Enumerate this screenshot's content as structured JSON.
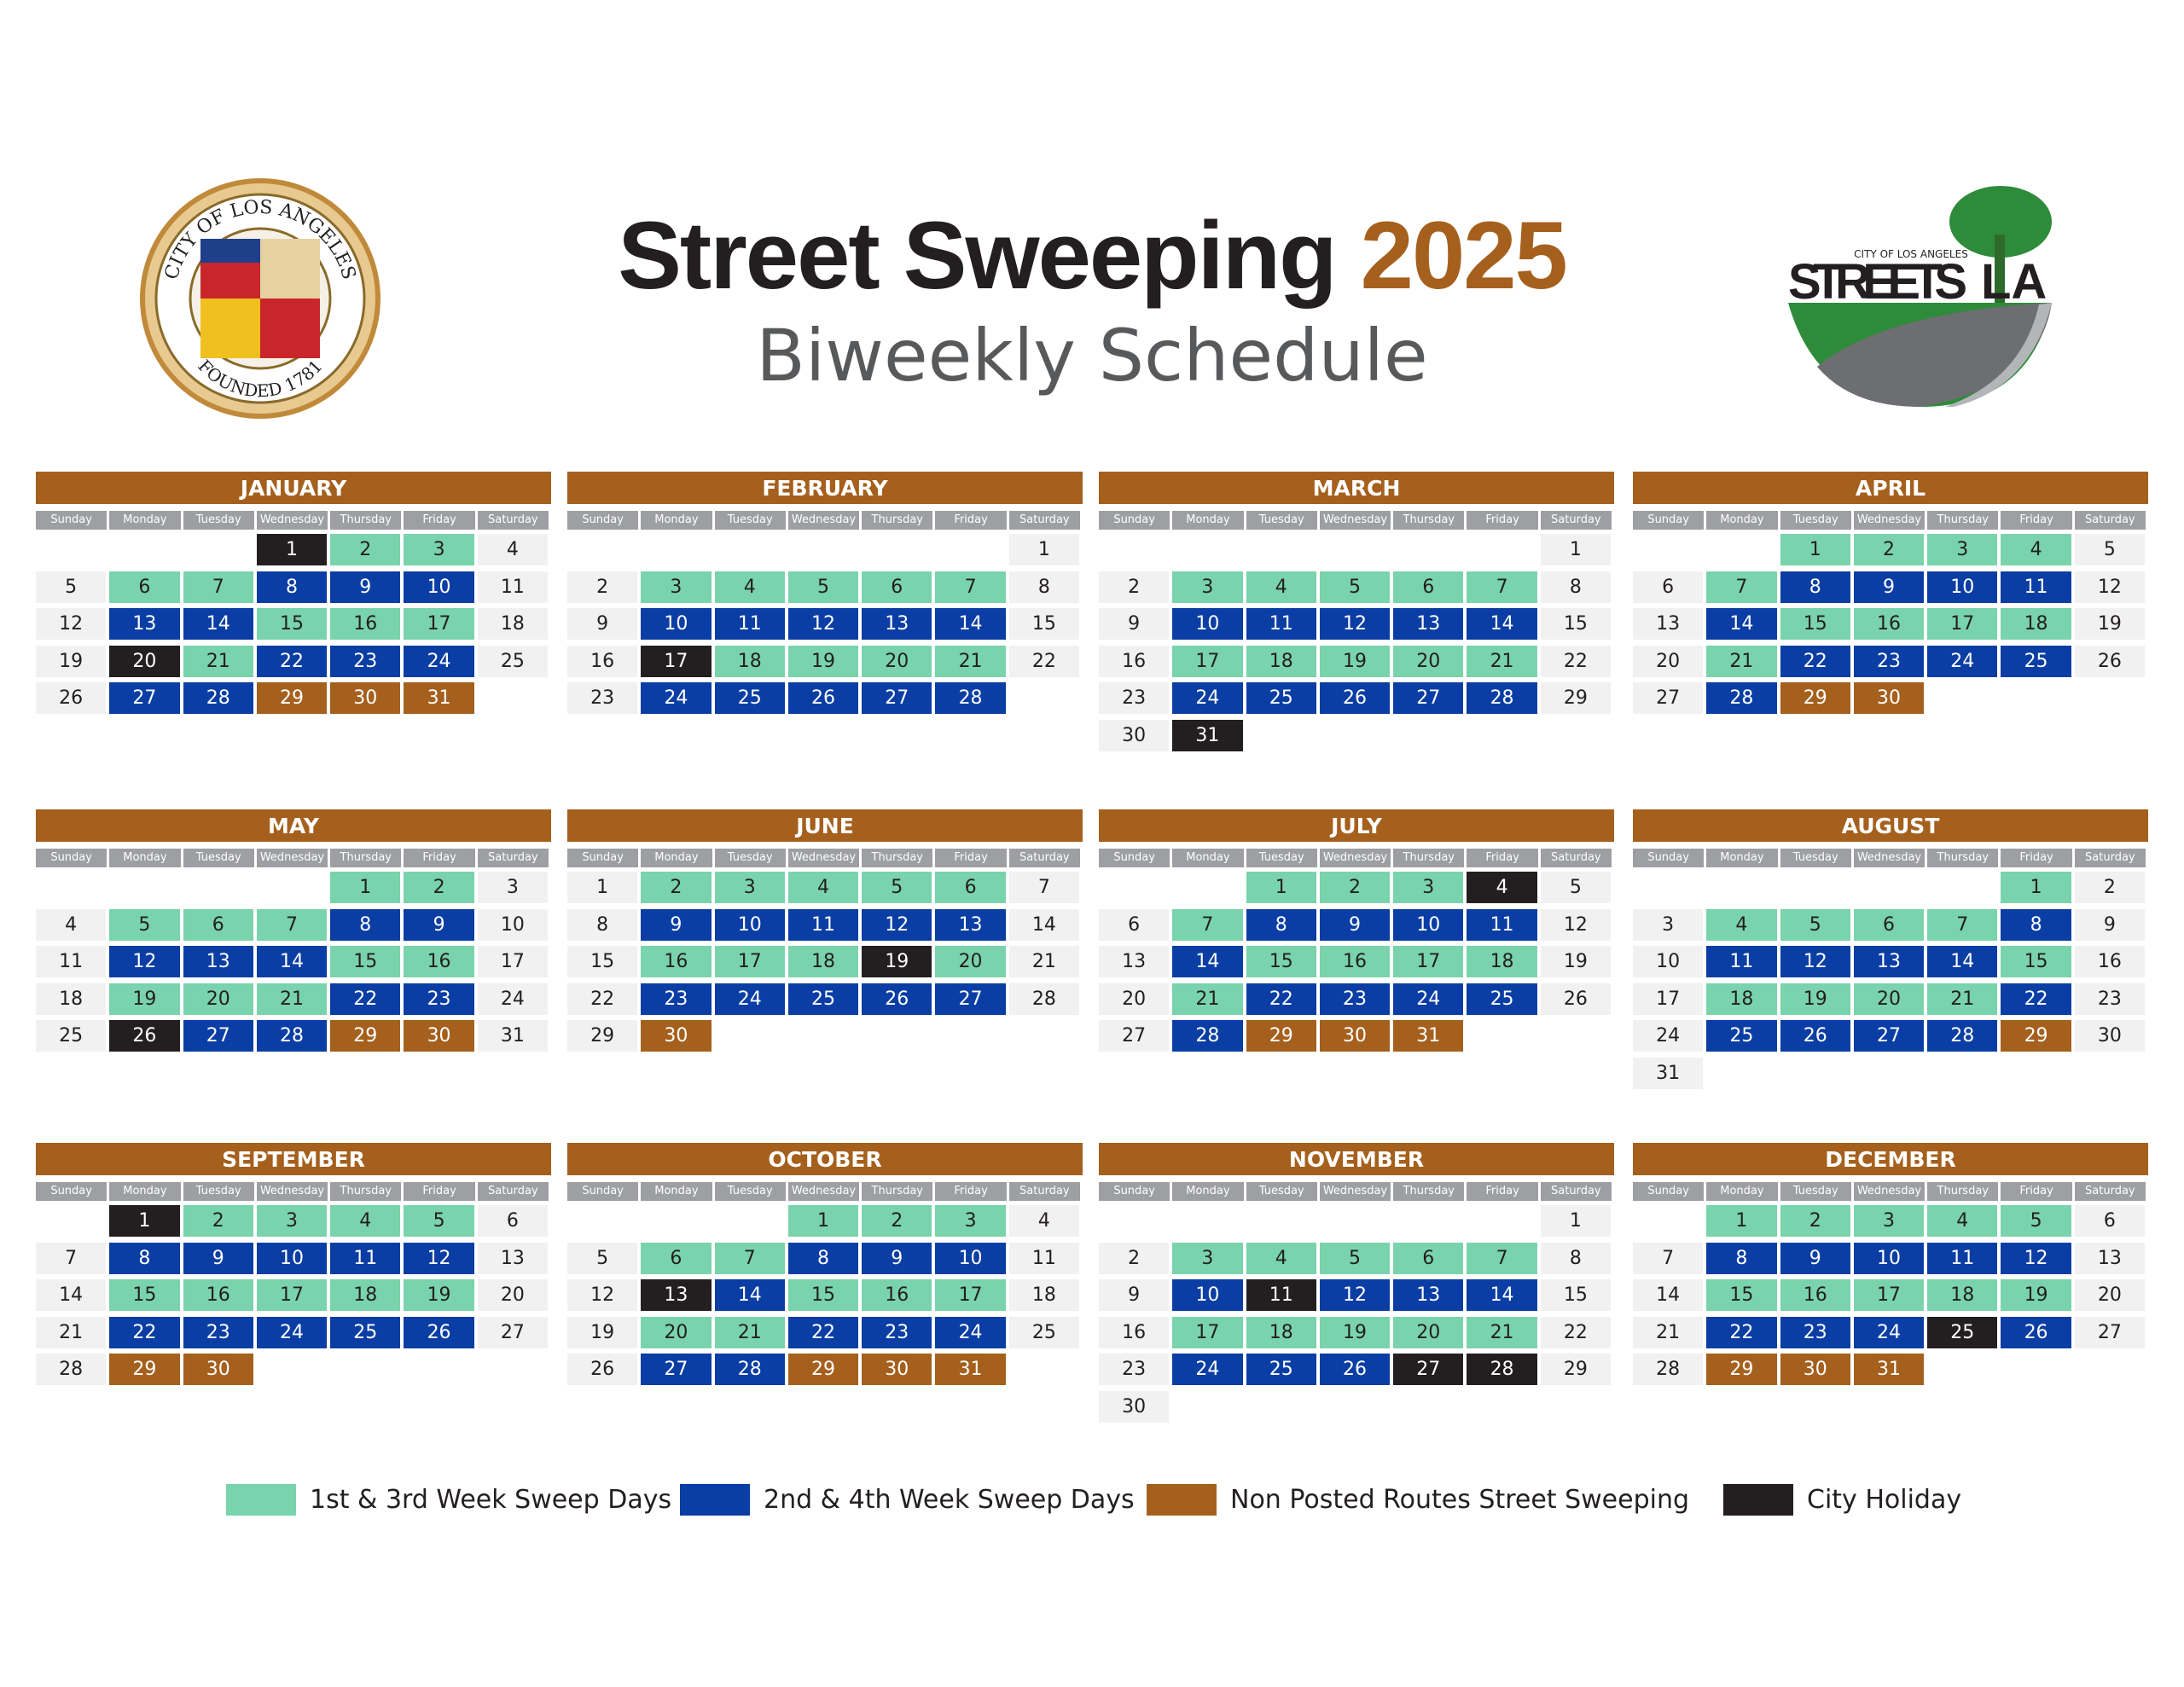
{
  "header": {
    "title": "Street Sweeping",
    "year": "2025",
    "subtitle": "Biweekly Schedule",
    "seal_top": "CITY OF LOS ANGELES",
    "seal_bottom": "FOUNDED 1781",
    "logo_small": "CITY OF LOS ANGELES",
    "logo_left": "STREETS",
    "logo_right": "LA"
  },
  "weekdays": [
    "Sunday",
    "Monday",
    "Tuesday",
    "Wednesday",
    "Thursday",
    "Friday",
    "Saturday"
  ],
  "legend": [
    {
      "label": "1st & 3rd Week Sweep Days",
      "color": "#79d3ac"
    },
    {
      "label": "2nd & 4th Week Sweep Days",
      "color": "#0b3ea4"
    },
    {
      "label": "Non Posted Routes Street Sweeping",
      "color": "#a5601d"
    },
    {
      "label": "City Holiday",
      "color": "#231f20"
    }
  ],
  "months": [
    {
      "name": "JANUARY",
      "weeks": [
        [
          null,
          null,
          null,
          1,
          2,
          3,
          4
        ],
        [
          5,
          6,
          7,
          8,
          9,
          10,
          11
        ],
        [
          12,
          13,
          14,
          15,
          16,
          17,
          18
        ],
        [
          19,
          20,
          21,
          22,
          23,
          24,
          25
        ],
        [
          26,
          27,
          28,
          29,
          30,
          31,
          null
        ]
      ],
      "kinds": [
        3,
        0,
        0,
        null,
        null,
        0,
        0,
        1,
        1,
        1,
        null,
        null,
        1,
        1,
        0,
        0,
        0,
        null,
        null,
        3,
        0,
        1,
        1,
        1,
        null,
        null,
        1,
        1,
        2,
        2,
        2
      ]
    },
    {
      "name": "FEBRUARY",
      "weeks": [
        [
          null,
          null,
          null,
          null,
          null,
          null,
          1
        ],
        [
          2,
          3,
          4,
          5,
          6,
          7,
          8
        ],
        [
          9,
          10,
          11,
          12,
          13,
          14,
          15
        ],
        [
          16,
          17,
          18,
          19,
          20,
          21,
          22
        ],
        [
          23,
          24,
          25,
          26,
          27,
          28,
          null
        ]
      ],
      "kinds": [
        null,
        null,
        0,
        0,
        0,
        0,
        0,
        null,
        null,
        1,
        1,
        1,
        1,
        1,
        null,
        null,
        3,
        0,
        0,
        0,
        0,
        null,
        null,
        1,
        1,
        1,
        1,
        1
      ]
    },
    {
      "name": "MARCH",
      "weeks": [
        [
          null,
          null,
          null,
          null,
          null,
          null,
          1
        ],
        [
          2,
          3,
          4,
          5,
          6,
          7,
          8
        ],
        [
          9,
          10,
          11,
          12,
          13,
          14,
          15
        ],
        [
          16,
          17,
          18,
          19,
          20,
          21,
          22
        ],
        [
          23,
          24,
          25,
          26,
          27,
          28,
          29
        ],
        [
          30,
          31,
          null,
          null,
          null,
          null,
          null
        ]
      ],
      "kinds": [
        null,
        null,
        0,
        0,
        0,
        0,
        0,
        null,
        null,
        1,
        1,
        1,
        1,
        1,
        null,
        null,
        0,
        0,
        0,
        0,
        0,
        null,
        null,
        1,
        1,
        1,
        1,
        1,
        null,
        null,
        3
      ]
    },
    {
      "name": "APRIL",
      "weeks": [
        [
          null,
          null,
          1,
          2,
          3,
          4,
          5
        ],
        [
          6,
          7,
          8,
          9,
          10,
          11,
          12
        ],
        [
          13,
          14,
          15,
          16,
          17,
          18,
          19
        ],
        [
          20,
          21,
          22,
          23,
          24,
          25,
          26
        ],
        [
          27,
          28,
          29,
          30,
          null,
          null,
          null
        ]
      ],
      "kinds": [
        0,
        0,
        0,
        0,
        null,
        null,
        0,
        1,
        1,
        1,
        1,
        null,
        null,
        1,
        0,
        0,
        0,
        0,
        null,
        null,
        0,
        1,
        1,
        1,
        1,
        null,
        null,
        1,
        2,
        2
      ]
    },
    {
      "name": "MAY",
      "weeks": [
        [
          null,
          null,
          null,
          null,
          1,
          2,
          3
        ],
        [
          4,
          5,
          6,
          7,
          8,
          9,
          10
        ],
        [
          11,
          12,
          13,
          14,
          15,
          16,
          17
        ],
        [
          18,
          19,
          20,
          21,
          22,
          23,
          24
        ],
        [
          25,
          26,
          27,
          28,
          29,
          30,
          31
        ]
      ],
      "kinds": [
        0,
        0,
        null,
        null,
        0,
        0,
        0,
        1,
        1,
        null,
        null,
        1,
        1,
        1,
        0,
        0,
        null,
        null,
        0,
        0,
        0,
        1,
        1,
        null,
        null,
        3,
        1,
        1,
        2,
        2,
        null
      ]
    },
    {
      "name": "JUNE",
      "weeks": [
        [
          1,
          2,
          3,
          4,
          5,
          6,
          7
        ],
        [
          8,
          9,
          10,
          11,
          12,
          13,
          14
        ],
        [
          15,
          16,
          17,
          18,
          19,
          20,
          21
        ],
        [
          22,
          23,
          24,
          25,
          26,
          27,
          28
        ],
        [
          29,
          30,
          null,
          null,
          null,
          null,
          null
        ]
      ],
      "kinds": [
        null,
        0,
        0,
        0,
        0,
        0,
        null,
        null,
        1,
        1,
        1,
        1,
        1,
        null,
        null,
        0,
        0,
        0,
        3,
        0,
        null,
        null,
        1,
        1,
        1,
        1,
        1,
        null,
        null,
        2
      ]
    },
    {
      "name": "JULY",
      "weeks": [
        [
          null,
          null,
          1,
          2,
          3,
          4,
          5
        ],
        [
          6,
          7,
          8,
          9,
          10,
          11,
          12
        ],
        [
          13,
          14,
          15,
          16,
          17,
          18,
          19
        ],
        [
          20,
          21,
          22,
          23,
          24,
          25,
          26
        ],
        [
          27,
          28,
          29,
          30,
          31,
          null,
          null
        ]
      ],
      "kinds": [
        0,
        0,
        0,
        3,
        null,
        null,
        0,
        1,
        1,
        1,
        1,
        null,
        null,
        1,
        0,
        0,
        0,
        0,
        null,
        null,
        0,
        1,
        1,
        1,
        1,
        null,
        null,
        1,
        2,
        2,
        2
      ]
    },
    {
      "name": "AUGUST",
      "weeks": [
        [
          null,
          null,
          null,
          null,
          null,
          1,
          2
        ],
        [
          3,
          4,
          5,
          6,
          7,
          8,
          9
        ],
        [
          10,
          11,
          12,
          13,
          14,
          15,
          16
        ],
        [
          17,
          18,
          19,
          20,
          21,
          22,
          23
        ],
        [
          24,
          25,
          26,
          27,
          28,
          29,
          30
        ],
        [
          31,
          null,
          null,
          null,
          null,
          null,
          null
        ]
      ],
      "kinds": [
        0,
        null,
        null,
        0,
        0,
        0,
        0,
        1,
        null,
        null,
        1,
        1,
        1,
        1,
        0,
        null,
        null,
        0,
        0,
        0,
        0,
        1,
        null,
        null,
        1,
        1,
        1,
        1,
        2,
        null,
        null
      ]
    },
    {
      "name": "SEPTEMBER",
      "weeks": [
        [
          null,
          1,
          2,
          3,
          4,
          5,
          6
        ],
        [
          7,
          8,
          9,
          10,
          11,
          12,
          13
        ],
        [
          14,
          15,
          16,
          17,
          18,
          19,
          20
        ],
        [
          21,
          22,
          23,
          24,
          25,
          26,
          27
        ],
        [
          28,
          29,
          30,
          null,
          null,
          null,
          null
        ]
      ],
      "kinds": [
        3,
        0,
        0,
        0,
        0,
        null,
        null,
        1,
        1,
        1,
        1,
        1,
        null,
        null,
        0,
        0,
        0,
        0,
        0,
        null,
        null,
        1,
        1,
        1,
        1,
        1,
        null,
        null,
        2,
        2
      ]
    },
    {
      "name": "OCTOBER",
      "weeks": [
        [
          null,
          null,
          null,
          1,
          2,
          3,
          4
        ],
        [
          5,
          6,
          7,
          8,
          9,
          10,
          11
        ],
        [
          12,
          13,
          14,
          15,
          16,
          17,
          18
        ],
        [
          19,
          20,
          21,
          22,
          23,
          24,
          25
        ],
        [
          26,
          27,
          28,
          29,
          30,
          31,
          null
        ]
      ],
      "kinds": [
        0,
        0,
        0,
        null,
        null,
        0,
        0,
        1,
        1,
        1,
        null,
        null,
        3,
        1,
        0,
        0,
        0,
        null,
        null,
        0,
        0,
        1,
        1,
        1,
        null,
        null,
        1,
        1,
        2,
        2,
        2
      ]
    },
    {
      "name": "NOVEMBER",
      "weeks": [
        [
          null,
          null,
          null,
          null,
          null,
          null,
          1
        ],
        [
          2,
          3,
          4,
          5,
          6,
          7,
          8
        ],
        [
          9,
          10,
          11,
          12,
          13,
          14,
          15
        ],
        [
          16,
          17,
          18,
          19,
          20,
          21,
          22
        ],
        [
          23,
          24,
          25,
          26,
          27,
          28,
          29
        ],
        [
          30,
          null,
          null,
          null,
          null,
          null,
          null
        ]
      ],
      "kinds": [
        null,
        null,
        0,
        0,
        0,
        0,
        0,
        null,
        null,
        1,
        3,
        1,
        1,
        1,
        null,
        null,
        0,
        0,
        0,
        0,
        0,
        null,
        null,
        1,
        1,
        1,
        3,
        3,
        null,
        null
      ]
    },
    {
      "name": "DECEMBER",
      "weeks": [
        [
          null,
          1,
          2,
          3,
          4,
          5,
          6
        ],
        [
          7,
          8,
          9,
          10,
          11,
          12,
          13
        ],
        [
          14,
          15,
          16,
          17,
          18,
          19,
          20
        ],
        [
          21,
          22,
          23,
          24,
          25,
          26,
          27
        ],
        [
          28,
          29,
          30,
          31,
          null,
          null,
          null
        ]
      ],
      "kinds": [
        0,
        0,
        0,
        0,
        0,
        null,
        null,
        1,
        1,
        1,
        1,
        1,
        null,
        null,
        0,
        0,
        0,
        0,
        0,
        null,
        null,
        1,
        1,
        1,
        3,
        1,
        null,
        null,
        2,
        2,
        2
      ]
    }
  ]
}
